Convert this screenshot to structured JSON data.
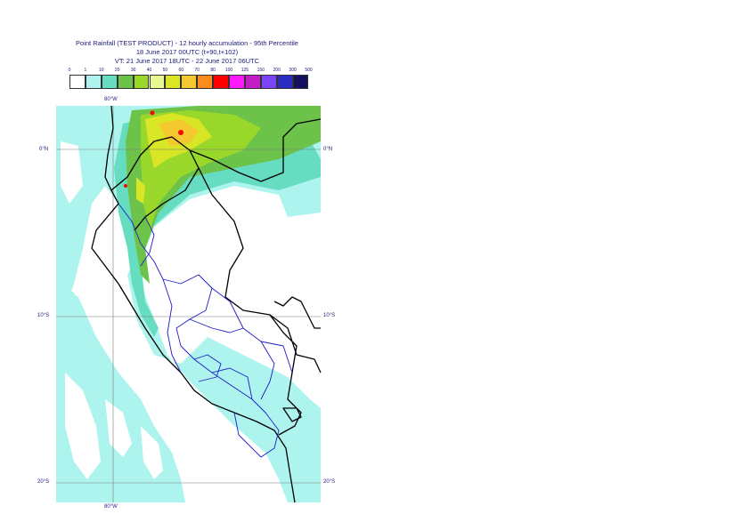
{
  "title": {
    "line1": "Point Rainfall (TEST PRODUCT) - 12 hourly accumulation - 95th Percentile",
    "line2": "18 June 2017 00UTC (t+90,t+102)",
    "line3": "VT: 21 June 2017 18UTC - 22 June 2017 06UTC"
  },
  "legend": {
    "ticks": [
      "0",
      "1",
      "10",
      "20",
      "30",
      "40",
      "50",
      "60",
      "70",
      "80",
      "100",
      "125",
      "150",
      "200",
      "300",
      "500"
    ],
    "colors": [
      "#ffffff",
      "#aef4ee",
      "#66dcc0",
      "#6dc24a",
      "#9ad72b",
      "#e7f98f",
      "#d9e626",
      "#f3c92f",
      "#ff8c1a",
      "#ff0000",
      "#ff19ff",
      "#c21dc7",
      "#7a46f5",
      "#2b2bc2",
      "#13105e"
    ]
  },
  "axes": {
    "lon_top": "80°W",
    "lon_bottom": "80°W",
    "lat_right": [
      "0°N",
      "10°S",
      "20°S"
    ],
    "lat_left": [
      "0°N",
      "10°S",
      "20°S"
    ]
  },
  "map": {
    "sea_color": "#ffffff",
    "rain_colors": {
      "light": "#aef4ee",
      "moderate": "#66dcc0",
      "green": "#6dc24a",
      "lime": "#9ad72b",
      "yellow": "#d9e626",
      "orange": "#f3c92f",
      "red": "#ff0000"
    },
    "border_color": "#000000",
    "region_border_color": "#1c1cc8",
    "grid_color": "#7a7a7a"
  }
}
